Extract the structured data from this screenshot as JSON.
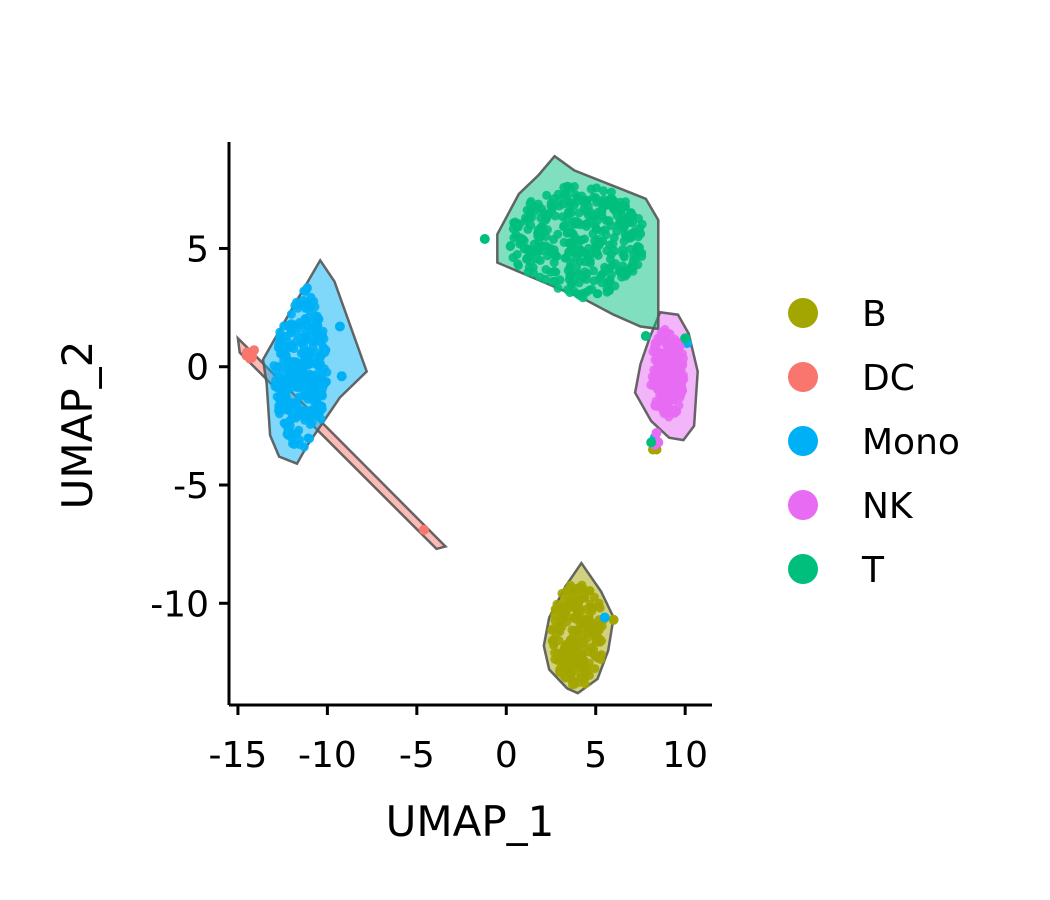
{
  "chart_data": {
    "type": "scatter",
    "title": "",
    "xlabel": "UMAP_1",
    "ylabel": "UMAP_2",
    "xlim": [
      -15.5,
      11.5
    ],
    "ylim": [
      -14.3,
      9.5
    ],
    "xticks": [
      -15,
      -10,
      -5,
      0,
      5,
      10
    ],
    "xtick_labels": [
      "-15",
      "-10",
      "-5",
      "0",
      "5",
      "10"
    ],
    "yticks": [
      -10,
      -5,
      0,
      5
    ],
    "ytick_labels": [
      "-10",
      "-5",
      "0",
      "5"
    ],
    "legend_position": "right",
    "grid": false,
    "series": [
      {
        "name": "B",
        "color": "#a3a500",
        "hull": [
          [
            4.2,
            -8.3
          ],
          [
            5.3,
            -9.5
          ],
          [
            6.0,
            -10.6
          ],
          [
            5.7,
            -12.0
          ],
          [
            5.1,
            -13.2
          ],
          [
            4.0,
            -13.8
          ],
          [
            3.4,
            -13.6
          ],
          [
            2.4,
            -12.8
          ],
          [
            2.1,
            -11.8
          ],
          [
            2.4,
            -10.6
          ],
          [
            3.3,
            -9.3
          ]
        ],
        "cluster": {
          "cx": 4.0,
          "cy": -11.3,
          "rx": 1.5,
          "ry": 2.2,
          "n": 220
        },
        "points": [
          [
            6.0,
            -10.7
          ],
          [
            8.4,
            -3.5
          ],
          [
            8.2,
            -3.5
          ]
        ]
      },
      {
        "name": "DC",
        "color": "#f8766d",
        "hull": [
          [
            -15.0,
            1.2
          ],
          [
            -14.6,
            0.9
          ],
          [
            -3.4,
            -7.6
          ],
          [
            -3.9,
            -7.7
          ],
          [
            -14.9,
            0.6
          ]
        ],
        "cluster": {
          "cx": -14.2,
          "cy": 0.6,
          "rx": 0.5,
          "ry": 0.3,
          "n": 8
        },
        "points": [
          [
            -14.5,
            0.6
          ],
          [
            -4.6,
            -6.9
          ],
          [
            -14.1,
            0.7
          ]
        ]
      },
      {
        "name": "Mono",
        "color": "#00b0f6",
        "hull": [
          [
            -10.4,
            4.5
          ],
          [
            -9.6,
            3.6
          ],
          [
            -7.8,
            -0.2
          ],
          [
            -9.3,
            -1.3
          ],
          [
            -11.1,
            -3.3
          ],
          [
            -11.7,
            -4.1
          ],
          [
            -12.7,
            -3.8
          ],
          [
            -13.2,
            -2.9
          ],
          [
            -13.4,
            -0.7
          ],
          [
            -13.6,
            0.3
          ],
          [
            -12.4,
            1.9
          ]
        ],
        "cluster": {
          "cx": -11.5,
          "cy": 0.0,
          "rx": 1.5,
          "ry": 3.5,
          "n": 320
        },
        "points": [
          [
            5.5,
            -10.6
          ],
          [
            8.3,
            -3.0
          ],
          [
            10.1,
            1.0
          ],
          [
            -9.3,
            1.7
          ],
          [
            -9.2,
            -0.4
          ]
        ]
      },
      {
        "name": "NK",
        "color": "#e76bf3",
        "hull": [
          [
            8.6,
            2.3
          ],
          [
            9.6,
            2.2
          ],
          [
            10.2,
            1.4
          ],
          [
            10.7,
            -0.2
          ],
          [
            10.5,
            -2.5
          ],
          [
            9.9,
            -3.1
          ],
          [
            9.1,
            -3.0
          ],
          [
            8.1,
            -2.3
          ],
          [
            7.2,
            -1.1
          ],
          [
            7.5,
            0.1
          ],
          [
            8.0,
            1.2
          ]
        ],
        "cluster": {
          "cx": 9.0,
          "cy": -0.3,
          "rx": 1.0,
          "ry": 1.9,
          "n": 200
        },
        "points": [
          [
            8.4,
            -2.8
          ],
          [
            8.5,
            -3.2
          ],
          [
            8.3,
            -3.3
          ]
        ]
      },
      {
        "name": "T",
        "color": "#00bf7d",
        "hull": [
          [
            2.7,
            8.9
          ],
          [
            3.8,
            8.3
          ],
          [
            7.8,
            7.1
          ],
          [
            8.5,
            6.2
          ],
          [
            8.5,
            1.6
          ],
          [
            7.5,
            1.7
          ],
          [
            6.0,
            2.2
          ],
          [
            4.5,
            2.8
          ],
          [
            -0.5,
            4.4
          ],
          [
            -0.5,
            5.6
          ],
          [
            0.7,
            7.3
          ],
          [
            1.8,
            8.1
          ]
        ],
        "cluster": {
          "cx": 4.0,
          "cy": 5.3,
          "rx": 3.8,
          "ry": 2.4,
          "n": 360
        },
        "points": [
          [
            -1.2,
            5.4
          ],
          [
            7.8,
            1.3
          ],
          [
            8.1,
            -3.2
          ],
          [
            10.0,
            1.2
          ]
        ]
      }
    ]
  }
}
